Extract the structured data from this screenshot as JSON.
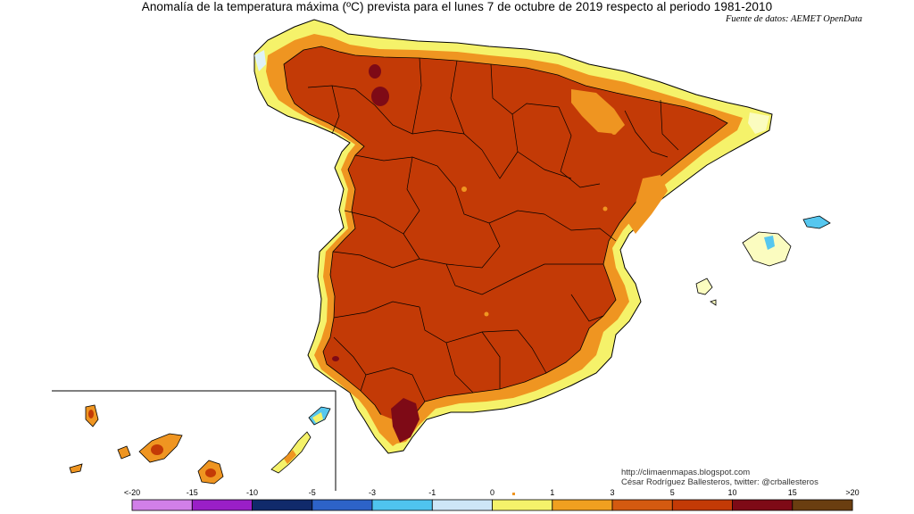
{
  "header": {
    "title": "Anomalía de la temperatura máxima (ºC) prevista para el lunes 7 de octubre de 2019 respecto al periodo 1981-2010",
    "source": "Fuente de datos: AEMET OpenData"
  },
  "credits": {
    "blog": "http://climaenmapas.blogspot.com",
    "author": "César Rodríguez Ballesteros, twitter: @crballesteros"
  },
  "legend": {
    "ticks": [
      "<-20",
      "-15",
      "-10",
      "-5",
      "-3",
      "-1",
      "0",
      "1",
      "3",
      "5",
      "10",
      "15",
      ">20"
    ],
    "colors": [
      "#d17fe8",
      "#9a1fc7",
      "#102a6b",
      "#2d63c8",
      "#4fc4ef",
      "#cde6f7",
      "#ffffff",
      "#f5f26a",
      "#f0a020",
      "#d45a10",
      "#c33a06",
      "#7e0a16",
      "#6a3e10"
    ]
  },
  "palette": {
    "dominant": "#c33a06",
    "dark": "#7e0a16",
    "orange": "#ef9521",
    "yellow": "#f5f26a",
    "pale": "#fbfcc0",
    "blue": "#56c7ef",
    "border": "#000000"
  }
}
